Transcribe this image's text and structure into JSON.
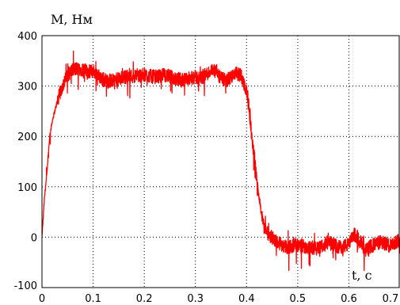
{
  "chart_data": {
    "type": "line",
    "title": "",
    "xlabel": "t, c",
    "ylabel": "M, Нм",
    "xlim": [
      0,
      0.7
    ],
    "ylim": [
      -100,
      400
    ],
    "xticks": [
      0,
      0.1,
      0.2,
      0.3,
      0.4,
      0.5,
      0.6,
      0.7
    ],
    "yticks": [
      -100,
      0,
      100,
      200,
      300,
      400
    ],
    "xtick_labels": [
      "0",
      "0.1",
      "0.2",
      "0.3",
      "0.4",
      "0.5",
      "0.6",
      "0.7"
    ],
    "ytick_labels": [
      "-100",
      "0",
      "100",
      "200",
      "300",
      "400"
    ],
    "grid": true,
    "grid_style": "dotted",
    "series": [
      {
        "color": "#ff0000",
        "x": [
          0,
          0.005,
          0.01,
          0.015,
          0.02,
          0.025,
          0.03,
          0.04,
          0.05,
          0.06,
          0.07,
          0.08,
          0.09,
          0.1,
          0.12,
          0.14,
          0.16,
          0.18,
          0.2,
          0.22,
          0.24,
          0.26,
          0.28,
          0.3,
          0.31,
          0.32,
          0.33,
          0.34,
          0.35,
          0.36,
          0.37,
          0.38,
          0.39,
          0.4,
          0.405,
          0.41,
          0.415,
          0.42,
          0.425,
          0.43,
          0.435,
          0.44,
          0.45,
          0.46,
          0.47,
          0.48,
          0.5,
          0.52,
          0.54,
          0.56,
          0.58,
          0.6,
          0.61,
          0.62,
          0.63,
          0.64,
          0.66,
          0.68,
          0.7
        ],
        "y": [
          0,
          80,
          130,
          200,
          230,
          250,
          270,
          300,
          322,
          332,
          335,
          333,
          328,
          330,
          312,
          310,
          318,
          320,
          322,
          318,
          322,
          315,
          312,
          318,
          315,
          322,
          330,
          328,
          315,
          310,
          318,
          325,
          320,
          290,
          255,
          200,
          160,
          110,
          80,
          40,
          20,
          10,
          0,
          -10,
          -15,
          -20,
          -15,
          -20,
          -22,
          -10,
          -20,
          -15,
          5,
          0,
          -30,
          -20,
          -10,
          -15,
          -5
        ]
      }
    ]
  }
}
